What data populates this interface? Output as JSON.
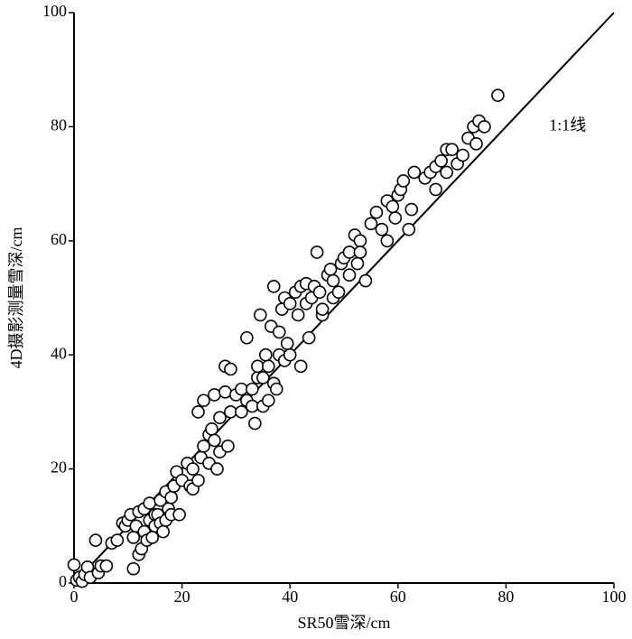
{
  "chart_data": {
    "type": "scatter",
    "x_label": "SR50雪深/cm",
    "y_label": "4D摄影测量雪深/cm",
    "annotation": "1:1线",
    "identity_line": {
      "x": [
        0,
        100
      ],
      "y": [
        0,
        100
      ]
    },
    "xlim": [
      0,
      100
    ],
    "ylim": [
      0,
      100
    ],
    "xticks": [
      0,
      20,
      40,
      60,
      80,
      100
    ],
    "yticks": [
      0,
      20,
      40,
      60,
      80,
      100
    ],
    "color": "#000000",
    "x": [
      0,
      0.5,
      1,
      1.5,
      2,
      2.5,
      3,
      4,
      4.5,
      5,
      6,
      7,
      8,
      9,
      9.5,
      10,
      10.5,
      11,
      11,
      11.5,
      12,
      12,
      12.5,
      13,
      13,
      13.5,
      14,
      14,
      14.5,
      15,
      15,
      15.5,
      16,
      16,
      16.5,
      17,
      17,
      17.5,
      18,
      18,
      18.5,
      19,
      19.5,
      20,
      21,
      21.5,
      22,
      22,
      23,
      23,
      23.5,
      24,
      24,
      25,
      25,
      25.5,
      26,
      26,
      26.5,
      27,
      27,
      28,
      28,
      28.5,
      29,
      29,
      30,
      31,
      31,
      32,
      32,
      33,
      33,
      33.5,
      34,
      34,
      34.5,
      35,
      35,
      35.5,
      36,
      36,
      36.5,
      37,
      37,
      37.5,
      38,
      38,
      38.5,
      39,
      39,
      39.5,
      40,
      40,
      41,
      41.5,
      42,
      42,
      43,
      43,
      43.5,
      44,
      44.5,
      45,
      45.5,
      46,
      46,
      47,
      47.5,
      48,
      48,
      49,
      49.5,
      50,
      51,
      51,
      52,
      52.5,
      53,
      53,
      54,
      55,
      56,
      57,
      58,
      58,
      59,
      59.5,
      60,
      60.5,
      61,
      62,
      62.5,
      63,
      65,
      66,
      67,
      67,
      68,
      69,
      69,
      70,
      71,
      72,
      73,
      74,
      74.5,
      75,
      76,
      78.5
    ],
    "y": [
      3.2,
      0.5,
      1,
      0.3,
      1.5,
      2.8,
      1,
      7.5,
      1.8,
      3,
      3,
      7,
      7.5,
      10.5,
      10,
      11,
      12,
      2.5,
      8,
      10,
      5,
      12.5,
      6,
      9,
      13,
      7.5,
      14,
      11,
      8,
      12,
      10,
      12,
      10.5,
      14.5,
      9,
      11,
      16,
      13,
      15,
      12,
      17,
      19.5,
      12,
      18,
      21,
      17,
      20,
      16.5,
      18,
      30,
      22,
      24,
      32,
      21,
      26,
      27,
      25,
      33,
      20,
      23,
      29,
      38,
      33.5,
      24,
      30,
      37.5,
      33,
      30,
      34,
      32,
      43,
      31,
      34,
      28,
      36,
      38,
      47,
      31,
      36,
      40,
      32,
      38,
      45,
      52,
      35,
      34,
      44,
      40,
      48,
      39,
      50,
      42,
      40,
      49,
      51,
      47,
      52,
      38,
      49,
      52.5,
      43,
      50,
      52,
      58,
      51,
      47,
      48,
      54,
      55,
      53,
      50,
      51,
      56,
      57,
      54,
      58,
      61,
      56,
      60,
      58,
      53,
      63,
      65,
      62,
      60,
      67,
      66,
      64,
      68,
      69,
      70.5,
      62,
      65.5,
      72,
      71,
      72,
      69,
      73,
      74,
      72,
      76,
      76,
      73.5,
      75,
      78,
      80,
      77,
      81,
      80,
      85.5
    ]
  }
}
